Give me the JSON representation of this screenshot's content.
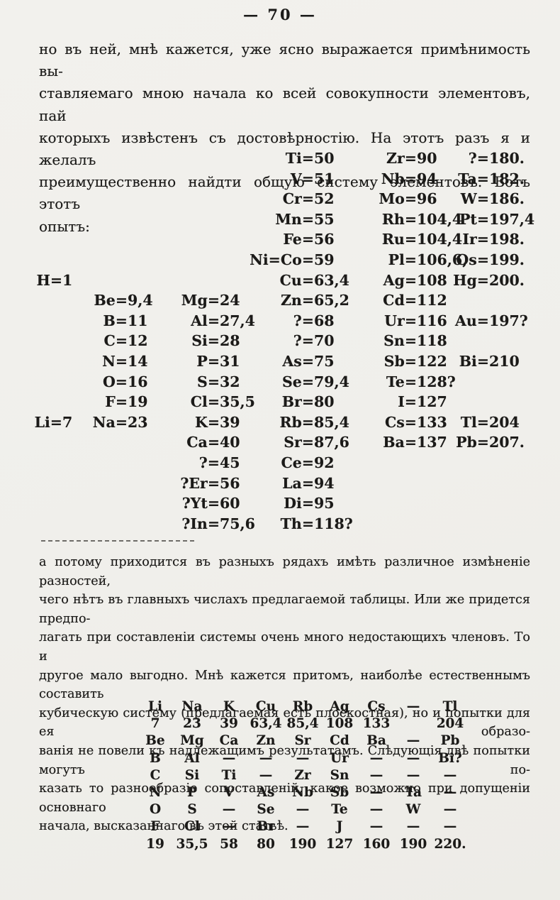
{
  "page": {
    "number_label": "— 70 —"
  },
  "colors": {
    "paper": "#f1f0ec",
    "ink": "#1b1a18"
  },
  "intro_paragraph": {
    "lines": [
      "но въ ней, мнѣ кажется, уже ясно выражается примѣнимость вы-",
      "ставляемаго мною начала ко всей совокупности элементовъ, пай",
      "которыхъ извѣстенъ съ достовѣрностію. На этотъ разъ я и желалъ",
      "преимущественно найдти общую систему элементовъ. Вотъ этотъ",
      "опытъ:"
    ]
  },
  "first_table": {
    "rows": [
      [
        {
          "c": 4,
          "t": "Ti=50"
        },
        {
          "c": 5,
          "t": "Zr=90"
        },
        {
          "c": 6,
          "t": "?=180."
        }
      ],
      [
        {
          "c": 4,
          "t": "V=51"
        },
        {
          "c": 5,
          "t": "Nb=94"
        },
        {
          "c": 6,
          "t": "Ta=182."
        }
      ],
      [
        {
          "c": 4,
          "t": "Cr=52"
        },
        {
          "c": 5,
          "t": "Mo=96"
        },
        {
          "c": 6,
          "t": "W=186."
        }
      ],
      [
        {
          "c": 4,
          "t": "Mn=55"
        },
        {
          "c": 5,
          "t": "Rh=104,4"
        },
        {
          "c": 6,
          "t": "Pt=197,4"
        }
      ],
      [
        {
          "c": 4,
          "t": "Fe=56"
        },
        {
          "c": 5,
          "t": "Ru=104,4"
        },
        {
          "c": 6,
          "t": "Ir=198."
        }
      ],
      [
        {
          "c": 4,
          "t": "Ni=Co=59"
        },
        {
          "c": 5,
          "t": "Pl=106,6,"
        },
        {
          "c": 6,
          "t": "Os=199."
        }
      ],
      [
        {
          "c": 1,
          "t": "H=1"
        },
        {
          "c": 4,
          "t": "Cu=63,4"
        },
        {
          "c": 5,
          "t": "Ag=108"
        },
        {
          "c": 6,
          "t": "Hg=200."
        }
      ],
      [
        {
          "c": 2,
          "t": "Be=9,4"
        },
        {
          "c": 3,
          "t": "Mg=24"
        },
        {
          "c": 4,
          "t": "Zn=65,2"
        },
        {
          "c": 5,
          "t": "Cd=112"
        }
      ],
      [
        {
          "c": 2,
          "t": "B=11"
        },
        {
          "c": 3,
          "t": "Al=27,4"
        },
        {
          "c": 4,
          "t": "?=68"
        },
        {
          "c": 5,
          "t": "Ur=116"
        },
        {
          "c": 6,
          "t": "Au=197?"
        }
      ],
      [
        {
          "c": 2,
          "t": "C=12"
        },
        {
          "c": 3,
          "t": "Si=28"
        },
        {
          "c": 4,
          "t": "?=70"
        },
        {
          "c": 5,
          "t": "Sn=118"
        }
      ],
      [
        {
          "c": 2,
          "t": "N=14"
        },
        {
          "c": 3,
          "t": "P=31"
        },
        {
          "c": 4,
          "t": "As=75"
        },
        {
          "c": 5,
          "t": "Sb=122"
        },
        {
          "c": 6,
          "t": "Bi=210"
        }
      ],
      [
        {
          "c": 2,
          "t": "O=16"
        },
        {
          "c": 3,
          "t": "S=32"
        },
        {
          "c": 4,
          "t": "Se=79,4"
        },
        {
          "c": 5,
          "t": "Te=128?"
        }
      ],
      [
        {
          "c": 2,
          "t": "F=19"
        },
        {
          "c": 3,
          "t": "Cl=35,5"
        },
        {
          "c": 4,
          "t": "Br=80"
        },
        {
          "c": 5,
          "t": "I=127"
        }
      ],
      [
        {
          "c": 1,
          "t": "Li=7"
        },
        {
          "c": 2,
          "t": "Na=23"
        },
        {
          "c": 3,
          "t": "K=39"
        },
        {
          "c": 4,
          "t": "Rb=85,4"
        },
        {
          "c": 5,
          "t": "Cs=133"
        },
        {
          "c": 6,
          "t": "Tl=204"
        }
      ],
      [
        {
          "c": 3,
          "t": "Ca=40"
        },
        {
          "c": 4,
          "t": "Sr=87,6"
        },
        {
          "c": 5,
          "t": "Ba=137"
        },
        {
          "c": 6,
          "t": "Pb=207."
        }
      ],
      [
        {
          "c": 3,
          "t": "?=45"
        },
        {
          "c": 4,
          "t": "Ce=92"
        }
      ],
      [
        {
          "c": 3,
          "t": "?Er=56"
        },
        {
          "c": 4,
          "t": "La=94"
        }
      ],
      [
        {
          "c": 3,
          "t": "?Yt=60"
        },
        {
          "c": 4,
          "t": "Di=95"
        }
      ],
      [
        {
          "c": 3,
          "t": "?In=75,6"
        },
        {
          "c": 4,
          "t": "Th=118?"
        }
      ]
    ]
  },
  "discussion_paragraph": {
    "lines": [
      "а потому приходится въ разныхъ рядахъ имѣть различное измѣненіе разностей,",
      "чего нѣтъ въ главныхъ числахъ предлагаемой таблицы. Или же придется предпо-",
      "лагать при составленіи системы очень много недостающихъ членовъ. То и",
      "другое мало выгодно. Мнѣ кажется притомъ, наиболѣе естественнымъ составить",
      "кубическую систему (предлагаемая есть плоскостная), но и попытки для ея образо-",
      "ванія не повели къ надлежащимъ результатамъ. Слѣдующія двѣ попытки могутъ по-",
      "казать то разнообразіе сопоставленій, какое возможно при допущеніи основнаго",
      "начала, высказаннаго въ этой статьѣ."
    ]
  },
  "second_table": {
    "rows": [
      [
        "Li",
        "Na",
        "K",
        "Cu",
        "Rb",
        "Ag",
        "Cs",
        "—",
        "Tl"
      ],
      [
        "7",
        "23",
        "39",
        "63,4",
        "85,4",
        "108",
        "133",
        "",
        "204"
      ],
      [
        "Be",
        "Mg",
        "Ca",
        "Zn",
        "Sr",
        "Cd",
        "Ba",
        "—",
        "Pb"
      ],
      [
        "B",
        "Al",
        "—",
        "—",
        "—",
        "Ur",
        "—",
        "—",
        "Bi?"
      ],
      [
        "C",
        "Si",
        "Ti",
        "—",
        "Zr",
        "Sn",
        "—",
        "—",
        "—"
      ],
      [
        "N",
        "P",
        "V",
        "As",
        "Nb",
        "Sb",
        "—",
        "Ta",
        "—"
      ],
      [
        "O",
        "S",
        "—",
        "Se",
        "—",
        "Te",
        "—",
        "W",
        "—"
      ],
      [
        "F",
        "Cl",
        "—",
        "Br",
        "—",
        "J",
        "—",
        "—",
        "—"
      ],
      [
        "19",
        "35,5",
        "58",
        "80",
        "190",
        "127",
        "160",
        "190",
        "220."
      ]
    ]
  }
}
